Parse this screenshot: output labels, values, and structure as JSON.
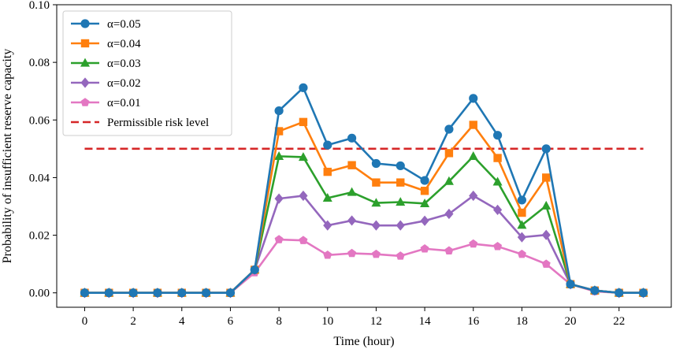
{
  "chart_data": {
    "type": "line",
    "title": "",
    "xlabel": "Time (hour)",
    "ylabel": "Probability of insufficient reserve capacity",
    "xlim": [
      -1.15,
      24.15
    ],
    "ylim": [
      -0.005,
      0.1
    ],
    "x_ticks": [
      0,
      2,
      4,
      6,
      8,
      10,
      12,
      14,
      16,
      18,
      20,
      22
    ],
    "x_tick_labels": [
      "0",
      "2",
      "4",
      "6",
      "8",
      "10",
      "12",
      "14",
      "16",
      "18",
      "20",
      "22"
    ],
    "y_ticks": [
      0.0,
      0.02,
      0.04,
      0.06,
      0.08,
      0.1
    ],
    "y_tick_labels": [
      "0.00",
      "0.02",
      "0.04",
      "0.06",
      "0.08",
      "0.10"
    ],
    "grid": false,
    "legend_position": "top-left",
    "x": [
      0,
      1,
      2,
      3,
      4,
      5,
      6,
      7,
      8,
      9,
      10,
      11,
      12,
      13,
      14,
      15,
      16,
      17,
      18,
      19,
      20,
      21,
      22,
      23
    ],
    "series": [
      {
        "name": "α=0.05",
        "color": "#1f77b4",
        "marker": "circle",
        "values": [
          0,
          0,
          0,
          0,
          0,
          0,
          0,
          0.008,
          0.0632,
          0.0712,
          0.0513,
          0.0537,
          0.0449,
          0.0441,
          0.039,
          0.0568,
          0.0675,
          0.0547,
          0.0322,
          0.05,
          0.003,
          0.0008,
          0,
          0
        ]
      },
      {
        "name": "α=0.04",
        "color": "#ff7f0e",
        "marker": "square",
        "values": [
          0,
          0,
          0,
          0,
          0,
          0,
          0,
          0.008,
          0.0561,
          0.0593,
          0.042,
          0.0443,
          0.0383,
          0.0383,
          0.0354,
          0.0485,
          0.0583,
          0.0468,
          0.0278,
          0.04,
          0.003,
          0.0008,
          0,
          0
        ]
      },
      {
        "name": "α=0.03",
        "color": "#2ca02c",
        "marker": "triangle",
        "values": [
          0,
          0,
          0,
          0,
          0,
          0,
          0,
          0.008,
          0.0474,
          0.0471,
          0.0329,
          0.0349,
          0.0312,
          0.0315,
          0.031,
          0.0387,
          0.0474,
          0.0385,
          0.0235,
          0.0302,
          0.003,
          0.0008,
          0,
          0
        ]
      },
      {
        "name": "α=0.02",
        "color": "#9467bd",
        "marker": "diamond",
        "values": [
          0,
          0,
          0,
          0,
          0,
          0,
          0,
          0.008,
          0.0327,
          0.0337,
          0.0234,
          0.0251,
          0.0234,
          0.0234,
          0.025,
          0.0274,
          0.0337,
          0.0288,
          0.0193,
          0.0201,
          0.003,
          0.0008,
          0,
          0
        ]
      },
      {
        "name": "α=0.01",
        "color": "#e377c2",
        "marker": "pentagon",
        "values": [
          0,
          0,
          0,
          0,
          0,
          0,
          0,
          0.007,
          0.0185,
          0.0182,
          0.0131,
          0.0137,
          0.0134,
          0.0128,
          0.0153,
          0.0146,
          0.017,
          0.0161,
          0.0134,
          0.01,
          0.003,
          0.0005,
          0,
          0
        ]
      }
    ],
    "reference_line": {
      "name": "Permissible risk level",
      "value": 0.05,
      "x_range": [
        0,
        23
      ],
      "color": "#d62728",
      "style": "dashed"
    }
  }
}
